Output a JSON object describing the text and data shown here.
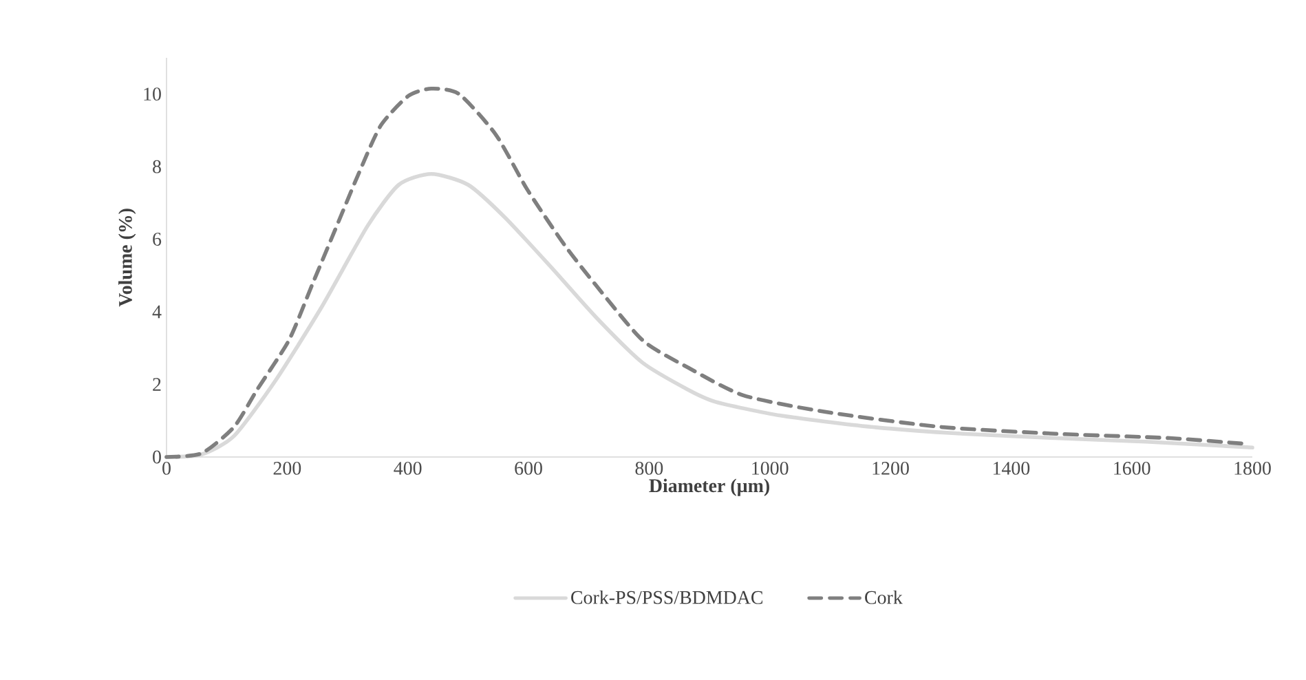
{
  "chart_data": {
    "type": "line",
    "xlabel": "Diameter (µm)",
    "ylabel": "Volume (%)",
    "xlim": [
      0,
      1800
    ],
    "ylim": [
      0,
      11
    ],
    "xticks": [
      0,
      200,
      400,
      600,
      800,
      1000,
      1200,
      1400,
      1600,
      1800
    ],
    "yticks": [
      0,
      2,
      4,
      6,
      8,
      10
    ],
    "grid": false,
    "legend": "bottom",
    "series": [
      {
        "name": "Cork-PS/PSS/BDMDAC",
        "color": "#d9d9d9",
        "line_style": "solid",
        "x": [
          0,
          58,
          112,
          180,
          256,
          333,
          385,
          439,
          500,
          561,
          637,
          712,
          789,
          865,
          910,
          1018,
          1168,
          1321,
          1474,
          1624,
          1800
        ],
        "values": [
          0,
          0.07,
          0.58,
          2.09,
          4.1,
          6.36,
          7.5,
          7.8,
          7.5,
          6.6,
          5.24,
          3.85,
          2.6,
          1.85,
          1.52,
          1.14,
          0.83,
          0.64,
          0.52,
          0.42,
          0.26
        ]
      },
      {
        "name": "Cork",
        "color": "#7f7f7f",
        "line_style": "dashed",
        "x": [
          0,
          58,
          112,
          150,
          203,
          241,
          279,
          317,
          355,
          401,
          439,
          485,
          546,
          598,
          659,
          712,
          789,
          865,
          956,
          1093,
          1282,
          1474,
          1663,
          1790
        ],
        "values": [
          0,
          0.1,
          0.83,
          1.85,
          3.22,
          4.73,
          6.24,
          7.75,
          9.13,
          9.95,
          10.15,
          10.0,
          8.88,
          7.37,
          5.86,
          4.73,
          3.22,
          2.46,
          1.7,
          1.24,
          0.83,
          0.64,
          0.52,
          0.36
        ]
      }
    ]
  }
}
